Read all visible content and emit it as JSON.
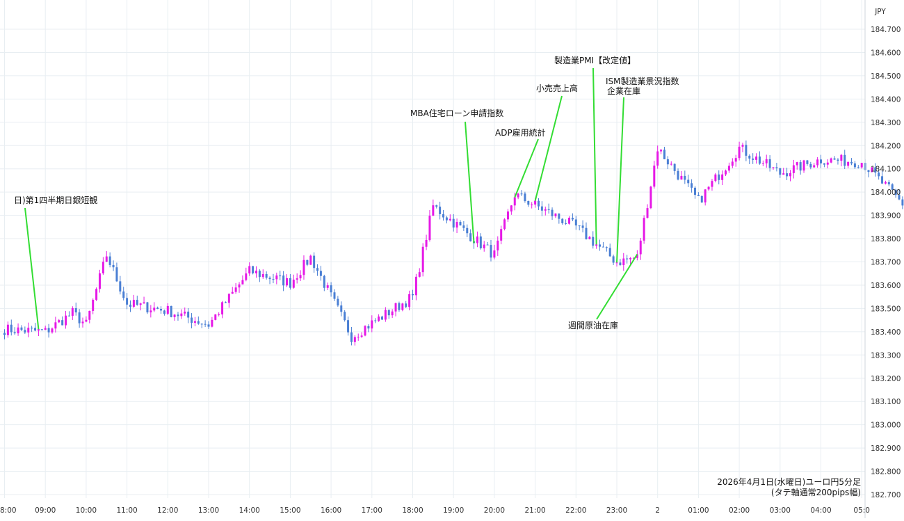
{
  "chart_data": {
    "type": "candlestick",
    "currency_label": "JPY",
    "colors": {
      "up": "#e619e6",
      "down": "#4a7fd4",
      "annotation_line": "#33dd33",
      "grid": "#e8eef2"
    },
    "ylim": [
      182.7,
      184.75
    ],
    "grid": true,
    "y_ticks": [
      "184.700",
      "184.600",
      "184.500",
      "184.400",
      "184.300",
      "184.200",
      "184.100",
      "184.000",
      "183.900",
      "183.800",
      "183.700",
      "183.600",
      "183.500",
      "183.400",
      "183.300",
      "183.200",
      "183.100",
      "183.000",
      "182.900",
      "182.800",
      "182.700"
    ],
    "x_ticks": [
      "8:00",
      "09:00",
      "10:00",
      "11:00",
      "12:00",
      "13:00",
      "14:00",
      "15:00",
      "16:00",
      "17:00",
      "18:00",
      "19:00",
      "20:00",
      "21:00",
      "22:00",
      "23:00",
      "2",
      "01:00",
      "02:00",
      "03:00",
      "04:00",
      "05:0"
    ],
    "caption": [
      "2026年4月1日(水曜日)ユーロ円5分足",
      "(タテ軸通常200pips幅)"
    ],
    "anchors": [
      [
        0,
        183.41
      ],
      [
        12,
        183.4
      ],
      [
        20,
        183.48
      ],
      [
        24,
        183.43
      ],
      [
        30,
        183.73
      ],
      [
        36,
        183.52
      ],
      [
        48,
        183.49
      ],
      [
        60,
        183.43
      ],
      [
        72,
        183.66
      ],
      [
        84,
        183.61
      ],
      [
        90,
        183.72
      ],
      [
        102,
        183.38
      ],
      [
        120,
        183.55
      ],
      [
        126,
        183.94
      ],
      [
        138,
        183.8
      ],
      [
        144,
        183.73
      ],
      [
        150,
        183.99
      ],
      [
        168,
        183.85
      ],
      [
        180,
        183.7
      ],
      [
        186,
        183.72
      ],
      [
        192,
        184.19
      ],
      [
        204,
        183.96
      ],
      [
        216,
        184.19
      ],
      [
        228,
        184.08
      ],
      [
        240,
        184.14
      ],
      [
        252,
        184.13
      ],
      [
        264,
        183.95
      ],
      [
        276,
        183.83
      ],
      [
        288,
        184.02
      ],
      [
        294,
        183.98
      ]
    ],
    "annotations": [
      {
        "label": "日)第1四半期日銀短観",
        "bar": 10
      },
      {
        "label": "MBA住宅ローン申請指数",
        "bar": 138
      },
      {
        "label": "ADP雇用統計",
        "bar": 150
      },
      {
        "label": "小売売上高",
        "bar": 156
      },
      {
        "label": "製造業PMI【改定値】",
        "bar": 174
      },
      {
        "label": "ISM製造業景況指数",
        "bar": 180
      },
      {
        "label": "企業在庫",
        "bar": 180
      },
      {
        "label": "週間原油在庫",
        "bar": 186
      }
    ]
  }
}
